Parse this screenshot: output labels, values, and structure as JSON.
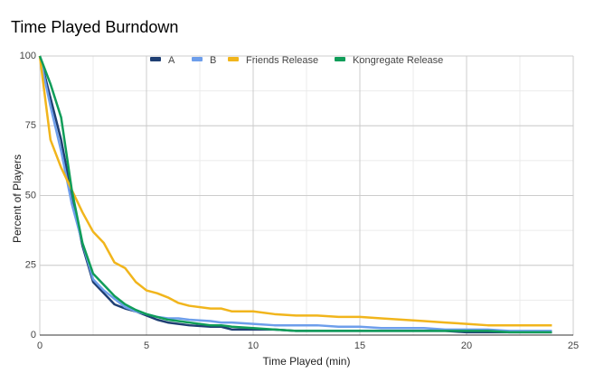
{
  "chart_data": {
    "type": "line",
    "title": "Time Played Burndown",
    "x_label": "Time Played (min)",
    "y_label": "Percent of Players",
    "x": [
      0,
      0.5,
      1,
      1.5,
      2,
      2.5,
      3,
      3.5,
      4,
      4.5,
      5,
      5.5,
      6,
      6.5,
      7,
      8,
      8.5,
      9,
      10,
      11,
      12,
      13,
      14,
      15,
      16,
      17,
      18,
      19,
      20,
      21,
      22,
      23,
      24
    ],
    "series": [
      {
        "name": "A",
        "color": "#1f3f73",
        "values": [
          100,
          85,
          70,
          50,
          32,
          19,
          15,
          11,
          9.5,
          8.5,
          7,
          5.5,
          4.5,
          4,
          3.5,
          3,
          3,
          2,
          2,
          2,
          1.5,
          1.5,
          1.5,
          1.5,
          1.5,
          1.5,
          1.5,
          1.5,
          1,
          1,
          1,
          1,
          1
        ]
      },
      {
        "name": "B",
        "color": "#6d9eeb",
        "values": [
          100,
          82,
          66,
          47,
          33,
          20,
          16,
          13,
          10,
          8.5,
          7.5,
          6.5,
          6,
          6,
          5.5,
          5,
          4.5,
          4.5,
          4,
          3.5,
          3.5,
          3.5,
          3,
          3,
          2.5,
          2.5,
          2.5,
          2,
          2,
          2,
          1.5,
          1.5,
          1.5
        ]
      },
      {
        "name": "Friends Release",
        "color": "#f1b51c",
        "values": [
          100,
          70,
          60,
          52,
          44,
          37,
          33,
          26,
          24,
          19,
          16,
          15,
          13.5,
          11.5,
          10.5,
          9.5,
          9.5,
          8.5,
          8.5,
          7.5,
          7,
          7,
          6.5,
          6.5,
          6,
          5.5,
          5,
          4.5,
          4,
          3.5,
          3.5,
          3.5,
          3.5
        ]
      },
      {
        "name": "Kongregate Release",
        "color": "#109d59",
        "values": [
          100,
          90,
          78,
          52,
          33,
          22,
          18,
          14,
          11,
          9,
          7.5,
          6.5,
          5.5,
          5,
          4.5,
          3.5,
          3.5,
          3,
          2.5,
          2,
          1.5,
          1.5,
          1.5,
          1.5,
          1.5,
          1.5,
          1.5,
          1.5,
          1.5,
          1.5,
          1,
          1,
          1
        ]
      }
    ],
    "xlim": [
      0,
      25
    ],
    "xticks": [
      0,
      5,
      10,
      15,
      20,
      25
    ],
    "ylim": [
      0,
      100
    ],
    "yticks": [
      0,
      25,
      50,
      75,
      100
    ],
    "grid": true,
    "legend": "top"
  }
}
